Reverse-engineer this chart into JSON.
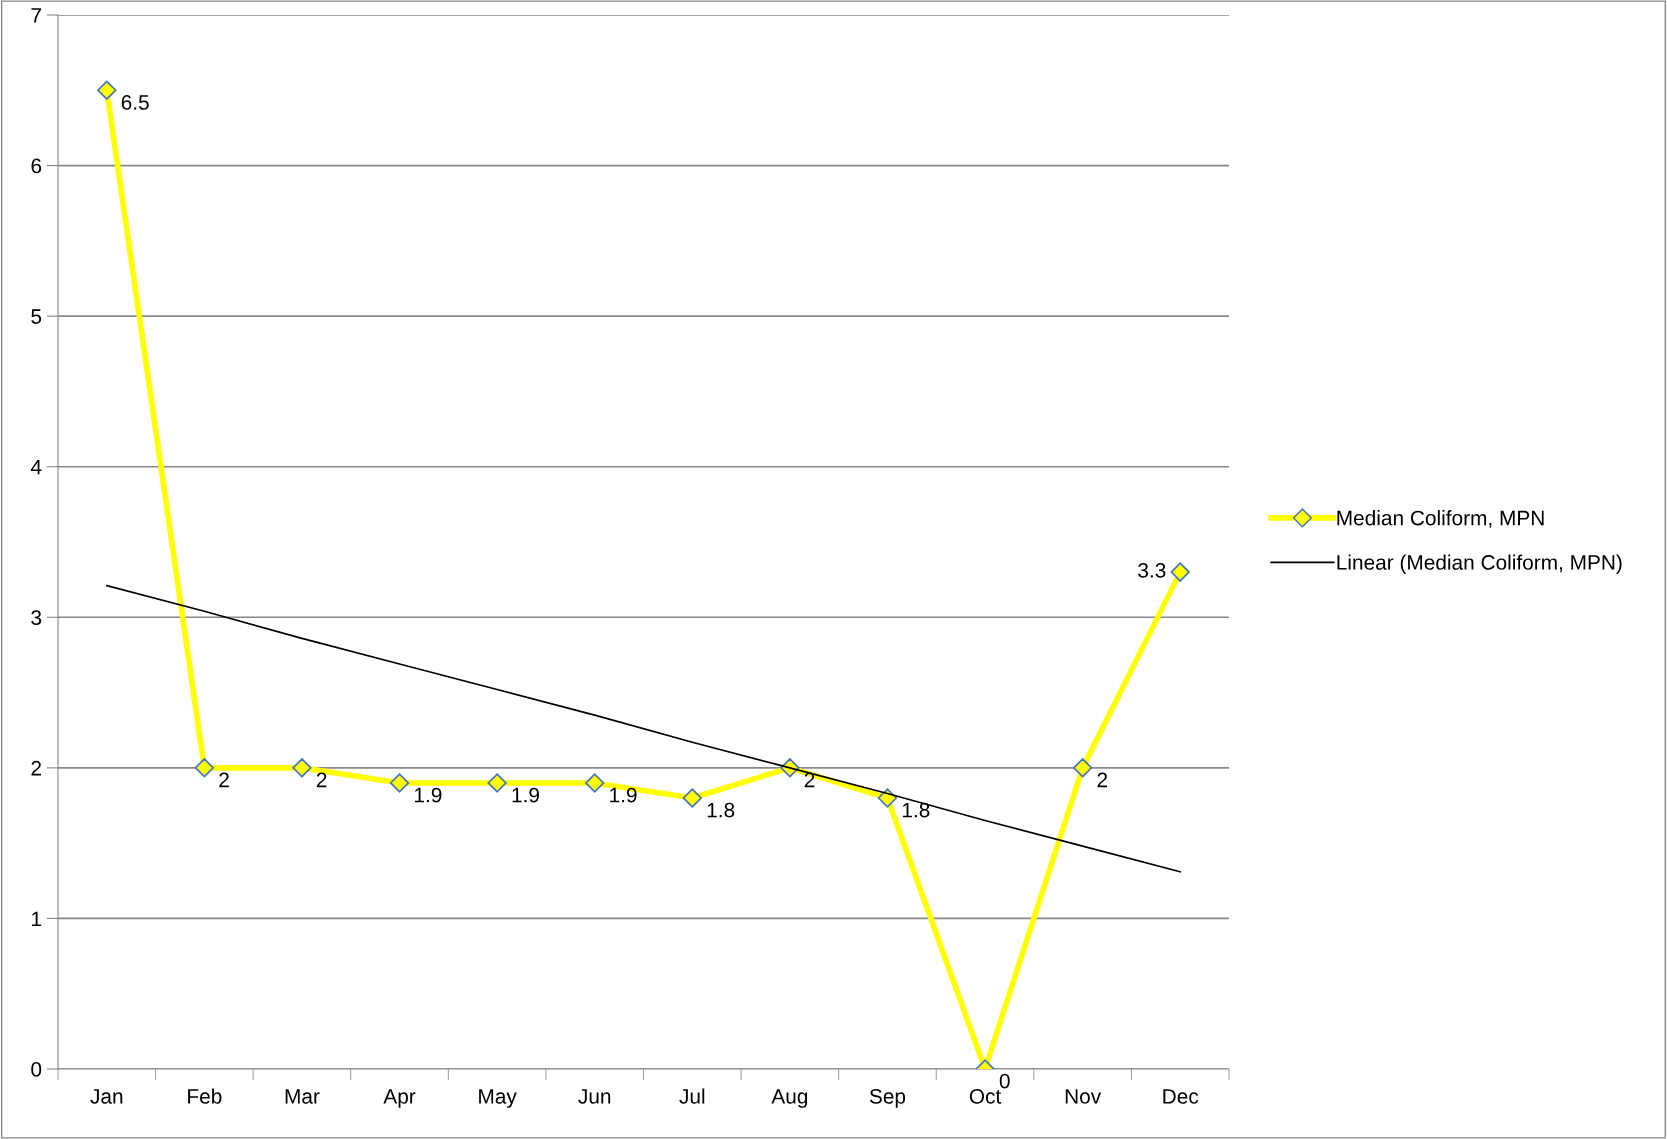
{
  "chart_data": {
    "type": "line",
    "categories": [
      "Jan",
      "Feb",
      "Mar",
      "Apr",
      "May",
      "Jun",
      "Jul",
      "Aug",
      "Sep",
      "Oct",
      "Nov",
      "Dec"
    ],
    "series": [
      {
        "name": "Median Coliform, MPN",
        "color": "#ffff00",
        "values": [
          6.5,
          2,
          2,
          1.9,
          1.9,
          1.9,
          1.8,
          2,
          1.8,
          0,
          2,
          3.3
        ],
        "marker": "diamond",
        "data_labels": true
      },
      {
        "name": "Linear (Median Coliform, MPN)",
        "color": "#000000",
        "values": [
          3.21,
          3.04,
          2.86,
          2.69,
          2.52,
          2.35,
          2.17,
          2.0,
          1.83,
          1.65,
          1.48,
          1.31
        ],
        "marker": "none"
      }
    ],
    "ylim": [
      0,
      7
    ],
    "yticks": [
      0,
      1,
      2,
      3,
      4,
      5,
      6,
      7
    ],
    "grid": "y",
    "legend": "right",
    "line_style": "solid"
  }
}
